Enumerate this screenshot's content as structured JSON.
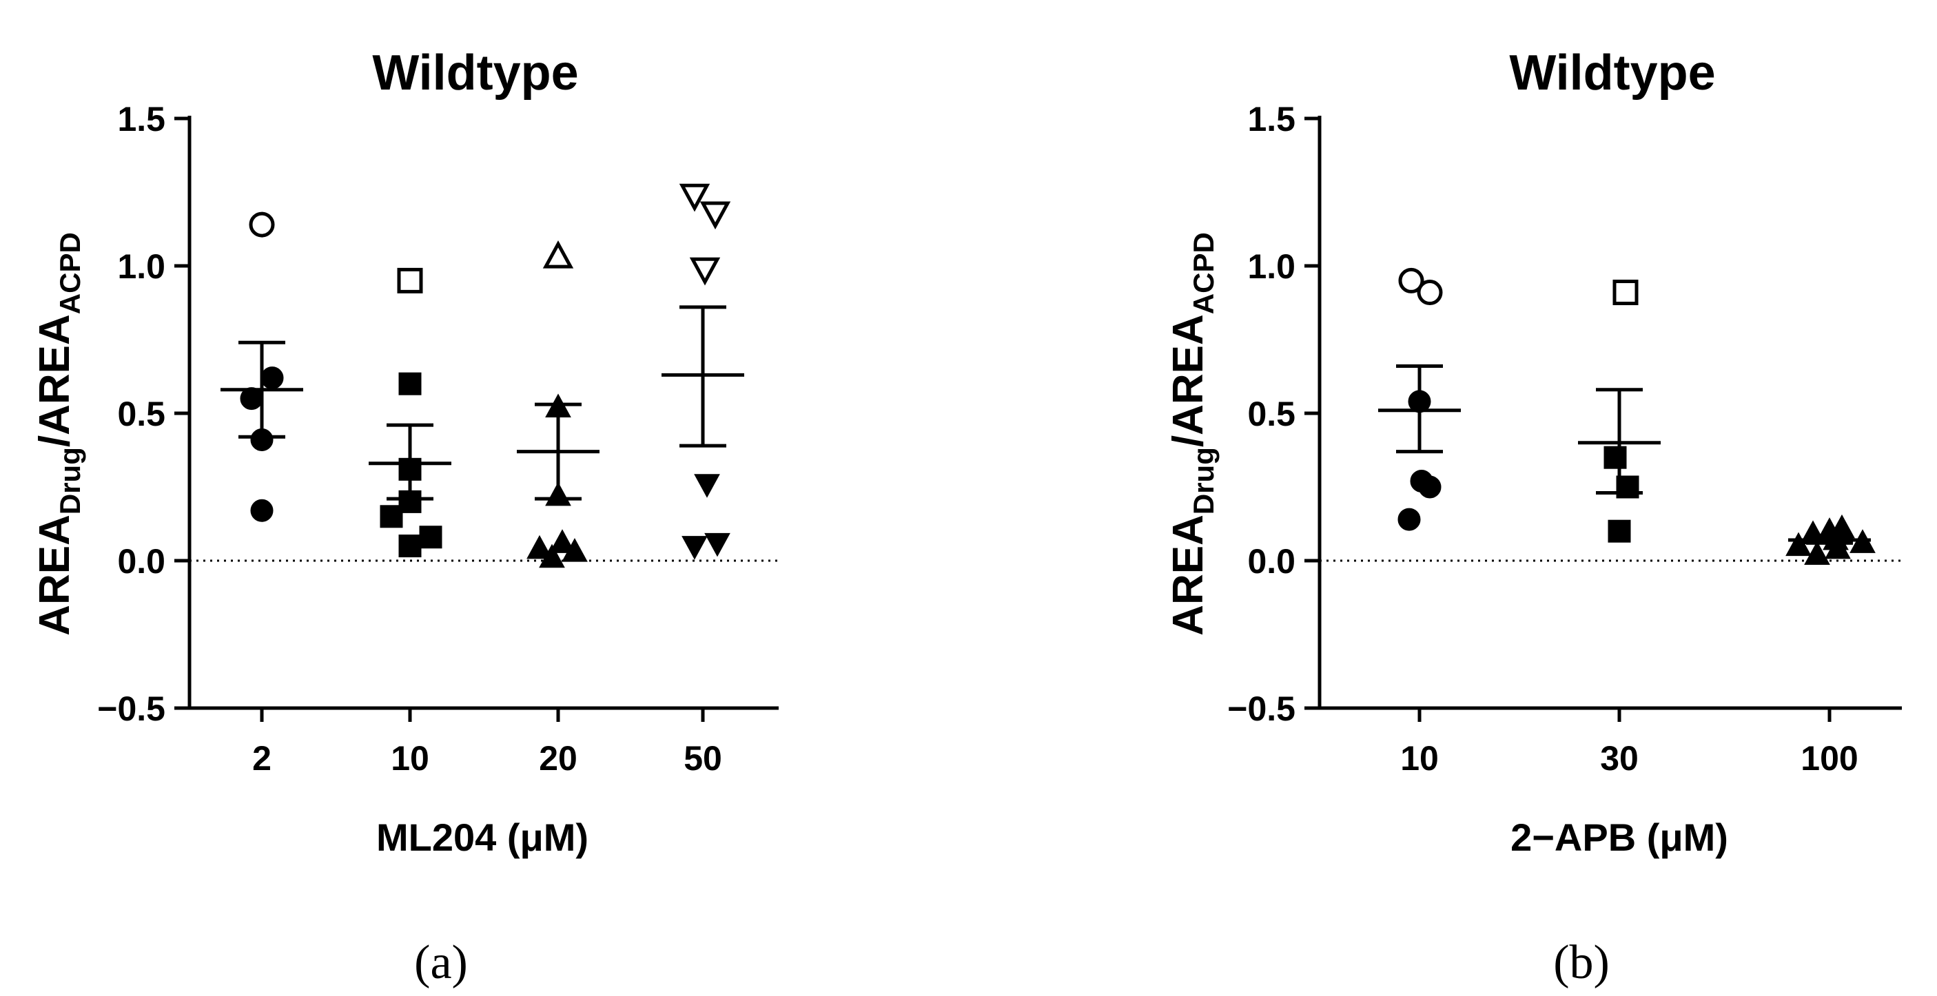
{
  "chart_data": [
    {
      "type": "scatter",
      "panel_label": "(a)",
      "title": "Wildtype",
      "xlabel": "ML204 (μM)",
      "ylabel": {
        "base1": "AREA",
        "sub1": "Drug",
        "slash": "/",
        "base2": "AREA",
        "sub2": "ACPD"
      },
      "ylim": [
        -0.5,
        1.5
      ],
      "yticks": [
        "1.5",
        "1.0",
        "0.5",
        "0.0",
        "−0.5"
      ],
      "ytick_values": [
        1.5,
        1.0,
        0.5,
        0.0,
        -0.5
      ],
      "reference_line": 0.0,
      "categories": [
        "2",
        "10",
        "20",
        "50"
      ],
      "groups": [
        {
          "category": "2",
          "marker": "circle",
          "mean": 0.58,
          "sem_low": 0.42,
          "sem_high": 0.74,
          "points": [
            {
              "y": 1.14,
              "open": true,
              "dx": 0
            },
            {
              "y": 0.62,
              "open": false,
              "dx": 0.25
            },
            {
              "y": 0.55,
              "open": false,
              "dx": -0.25
            },
            {
              "y": 0.41,
              "open": false,
              "dx": 0
            },
            {
              "y": 0.17,
              "open": false,
              "dx": 0
            }
          ]
        },
        {
          "category": "10",
          "marker": "square",
          "mean": 0.33,
          "sem_low": 0.21,
          "sem_high": 0.46,
          "points": [
            {
              "y": 0.95,
              "open": true,
              "dx": 0
            },
            {
              "y": 0.6,
              "open": false,
              "dx": 0
            },
            {
              "y": 0.31,
              "open": false,
              "dx": 0
            },
            {
              "y": 0.2,
              "open": false,
              "dx": 0
            },
            {
              "y": 0.15,
              "open": false,
              "dx": -0.45
            },
            {
              "y": 0.08,
              "open": false,
              "dx": 0.5
            },
            {
              "y": 0.05,
              "open": false,
              "dx": 0
            }
          ]
        },
        {
          "category": "20",
          "marker": "triangle-up",
          "mean": 0.37,
          "sem_low": 0.21,
          "sem_high": 0.53,
          "points": [
            {
              "y": 1.03,
              "open": true,
              "dx": 0
            },
            {
              "y": 0.52,
              "open": false,
              "dx": 0
            },
            {
              "y": 0.22,
              "open": false,
              "dx": 0
            },
            {
              "y": 0.04,
              "open": false,
              "dx": -0.45
            },
            {
              "y": 0.06,
              "open": false,
              "dx": 0.1
            },
            {
              "y": 0.01,
              "open": false,
              "dx": -0.15
            },
            {
              "y": 0.03,
              "open": false,
              "dx": 0.4
            }
          ]
        },
        {
          "category": "50",
          "marker": "triangle-down",
          "mean": 0.63,
          "sem_low": 0.39,
          "sem_high": 0.86,
          "points": [
            {
              "y": 1.24,
              "open": true,
              "dx": -0.2
            },
            {
              "y": 1.18,
              "open": true,
              "dx": 0.3
            },
            {
              "y": 0.99,
              "open": true,
              "dx": 0.05
            },
            {
              "y": 0.26,
              "open": false,
              "dx": 0.1
            },
            {
              "y": 0.05,
              "open": false,
              "dx": -0.2
            },
            {
              "y": 0.06,
              "open": false,
              "dx": 0.35
            }
          ]
        }
      ]
    },
    {
      "type": "scatter",
      "panel_label": "(b)",
      "title": "Wildtype",
      "xlabel": "2−APB (μM)",
      "ylabel": {
        "base1": "AREA",
        "sub1": "Drug",
        "slash": "/",
        "base2": "AREA",
        "sub2": "ACPD"
      },
      "ylim": [
        -0.5,
        1.5
      ],
      "yticks": [
        "1.5",
        "1.0",
        "0.5",
        "0.0",
        "−0.5"
      ],
      "ytick_values": [
        1.5,
        1.0,
        0.5,
        0.0,
        -0.5
      ],
      "reference_line": 0.0,
      "categories": [
        "10",
        "30",
        "100"
      ],
      "groups": [
        {
          "category": "10",
          "marker": "circle",
          "mean": 0.51,
          "sem_low": 0.37,
          "sem_high": 0.66,
          "points": [
            {
              "y": 0.95,
              "open": true,
              "dx": -0.2
            },
            {
              "y": 0.91,
              "open": true,
              "dx": 0.25
            },
            {
              "y": 0.54,
              "open": false,
              "dx": 0
            },
            {
              "y": 0.27,
              "open": false,
              "dx": 0.05
            },
            {
              "y": 0.25,
              "open": false,
              "dx": 0.25
            },
            {
              "y": 0.14,
              "open": false,
              "dx": -0.25
            }
          ]
        },
        {
          "category": "30",
          "marker": "square",
          "mean": 0.4,
          "sem_low": 0.23,
          "sem_high": 0.58,
          "points": [
            {
              "y": 0.91,
              "open": true,
              "dx": 0.15
            },
            {
              "y": 0.35,
              "open": false,
              "dx": -0.1
            },
            {
              "y": 0.25,
              "open": false,
              "dx": 0.2
            },
            {
              "y": 0.1,
              "open": false,
              "dx": 0
            }
          ]
        },
        {
          "category": "100",
          "marker": "triangle-up",
          "mean": 0.07,
          "sem_low": 0.06,
          "sem_high": 0.08,
          "points": [
            {
              "y": 0.05,
              "open": false,
              "dx": -0.75
            },
            {
              "y": 0.09,
              "open": false,
              "dx": -0.4
            },
            {
              "y": 0.02,
              "open": false,
              "dx": -0.3
            },
            {
              "y": 0.1,
              "open": false,
              "dx": 0
            },
            {
              "y": 0.07,
              "open": false,
              "dx": 0.15
            },
            {
              "y": 0.04,
              "open": false,
              "dx": 0.2
            },
            {
              "y": 0.11,
              "open": false,
              "dx": 0.3
            },
            {
              "y": 0.06,
              "open": false,
              "dx": 0.8
            }
          ]
        }
      ]
    }
  ]
}
